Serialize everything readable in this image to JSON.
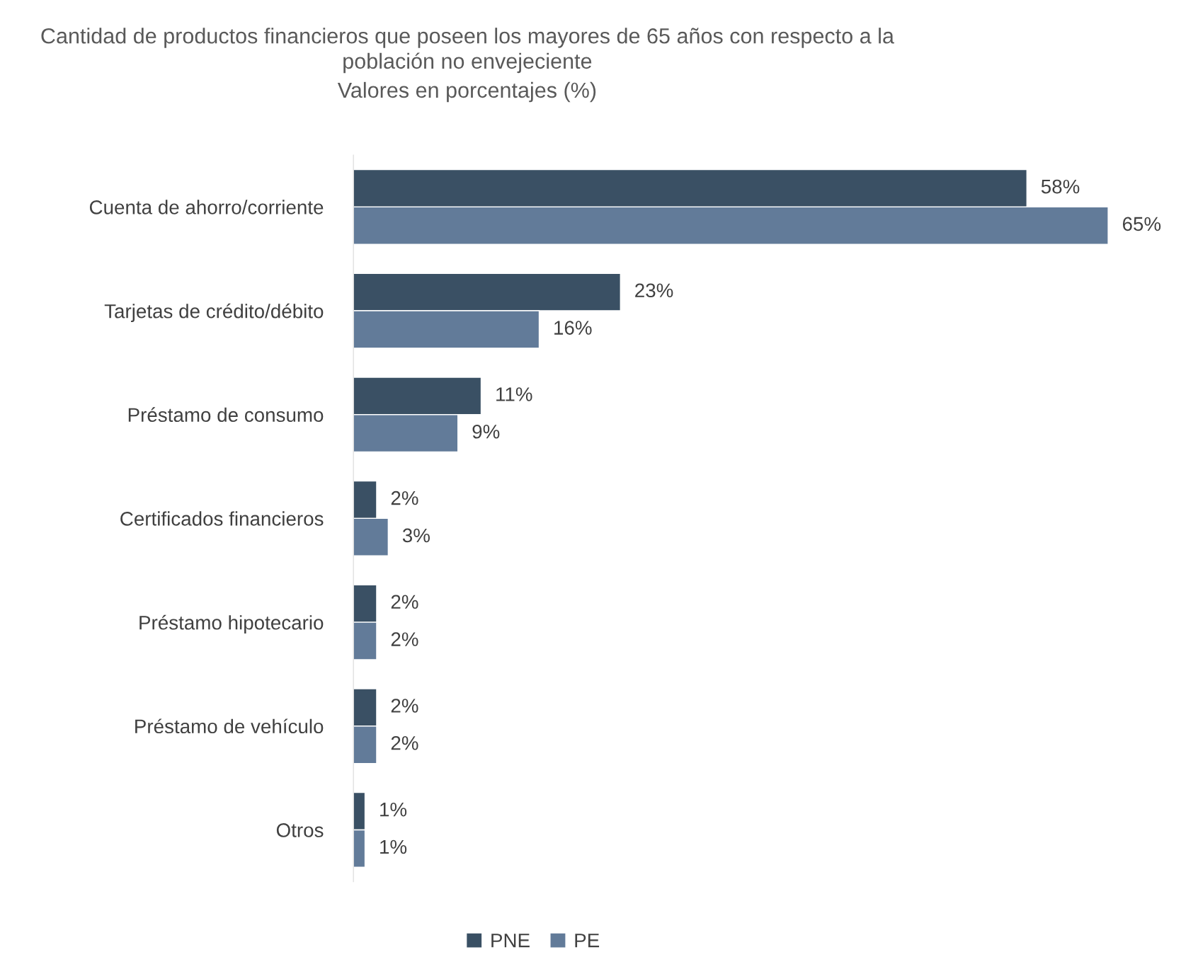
{
  "chart_data": {
    "type": "bar",
    "orientation": "horizontal",
    "title": "Cantidad de productos financieros que poseen los mayores de 65 años con respecto a la población no envejeciente",
    "subtitle": "Valores en porcentajes (%)",
    "categories": [
      "Cuenta de ahorro/corriente",
      "Tarjetas de crédito/débito",
      "Préstamo de consumo",
      "Certificados financieros",
      "Préstamo hipotecario",
      "Préstamo de vehículo",
      "Otros"
    ],
    "series": [
      {
        "name": "PNE",
        "color": "#3a5064",
        "values": [
          58,
          23,
          11,
          2,
          2,
          2,
          1
        ],
        "value_labels": [
          "58%",
          "23%",
          "11%",
          "2%",
          "2%",
          "2%",
          "1%"
        ]
      },
      {
        "name": "PE",
        "color": "#627b99",
        "values": [
          65,
          16,
          9,
          3,
          2,
          2,
          1
        ],
        "value_labels": [
          "65%",
          "16%",
          "9%",
          "3%",
          "2%",
          "2%",
          "1%"
        ]
      }
    ],
    "grid": false,
    "legend": "bottom"
  }
}
